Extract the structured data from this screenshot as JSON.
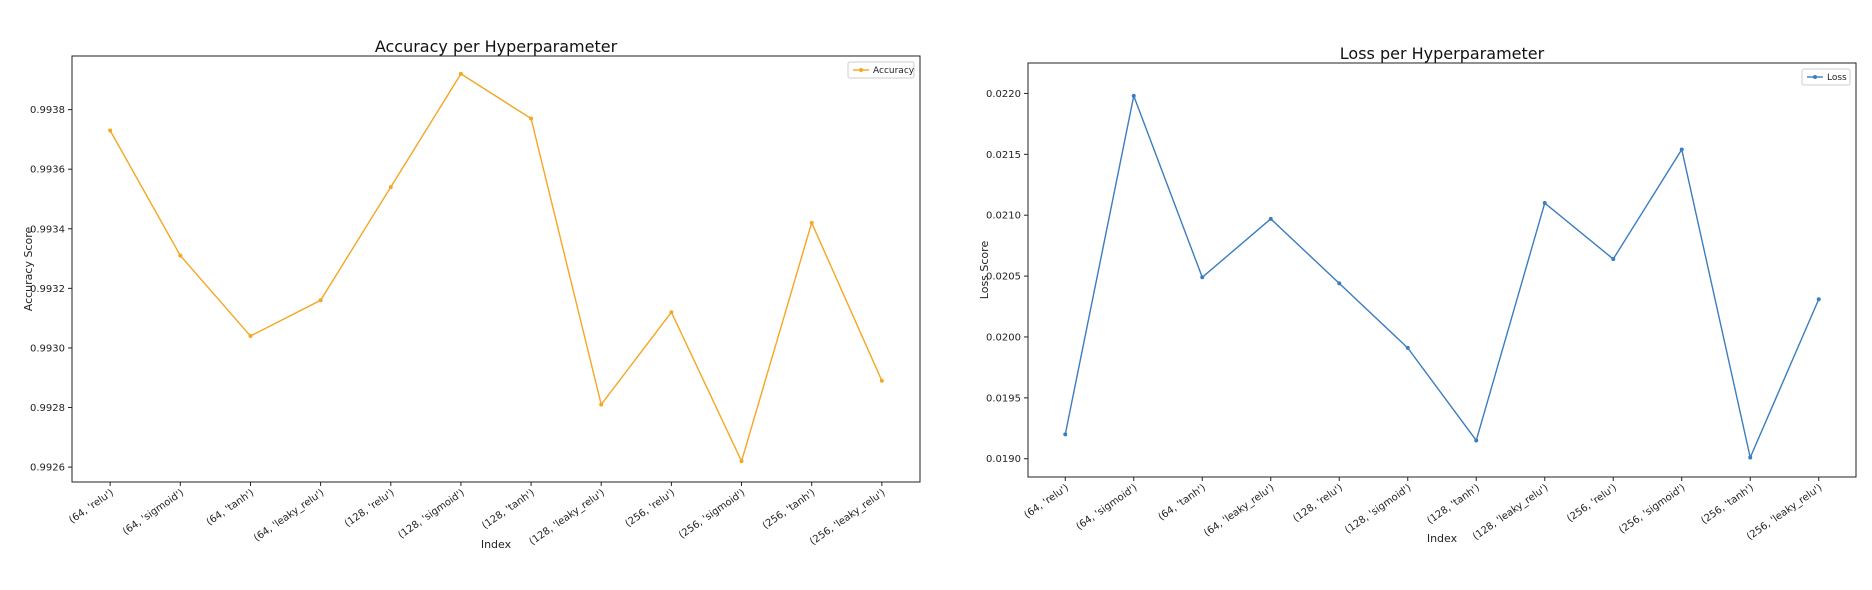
{
  "chart_data": [
    {
      "type": "line",
      "title": "Accuracy per Hyperparameter",
      "xlabel": "Index",
      "ylabel": "Accuracy Score",
      "color": "#f5a623",
      "legend": {
        "label": "Accuracy",
        "position": "top-right"
      },
      "categories": [
        "(64, 'relu')",
        "(64, 'sigmoid')",
        "(64, 'tanh')",
        "(64, 'leaky_relu')",
        "(128, 'relu')",
        "(128, 'sigmoid')",
        "(128, 'tanh')",
        "(128, 'leaky_relu')",
        "(256, 'relu')",
        "(256, 'sigmoid')",
        "(256, 'tanh')",
        "(256, 'leaky_relu')"
      ],
      "values": [
        0.99373,
        0.99331,
        0.99304,
        0.99316,
        0.99354,
        0.99392,
        0.99377,
        0.99281,
        0.99312,
        0.99262,
        0.99342,
        0.99289
      ],
      "ylim": [
        0.99255,
        0.99398
      ],
      "yticks": [
        "0.9926",
        "0.9928",
        "0.9930",
        "0.9932",
        "0.9934",
        "0.9936",
        "0.9938"
      ],
      "grid": false
    },
    {
      "type": "line",
      "title": "Loss per Hyperparameter",
      "xlabel": "Index",
      "ylabel": "Loss Score",
      "color": "#3b7dbf",
      "legend": {
        "label": "Loss",
        "position": "top-right"
      },
      "categories": [
        "(64, 'relu')",
        "(64, 'sigmoid')",
        "(64, 'tanh')",
        "(64, 'leaky_relu')",
        "(128, 'relu')",
        "(128, 'sigmoid')",
        "(128, 'tanh')",
        "(128, 'leaky_relu')",
        "(256, 'relu')",
        "(256, 'sigmoid')",
        "(256, 'tanh')",
        "(256, 'leaky_relu')"
      ],
      "values": [
        0.0192,
        0.02198,
        0.02049,
        0.02097,
        0.02044,
        0.01991,
        0.01915,
        0.0211,
        0.02064,
        0.02154,
        0.01901,
        0.02031
      ],
      "ylim": [
        0.01885,
        0.02225
      ],
      "yticks": [
        "0.0190",
        "0.0195",
        "0.0200",
        "0.0205",
        "0.0210",
        "0.0215",
        "0.0220"
      ],
      "grid": false
    }
  ]
}
